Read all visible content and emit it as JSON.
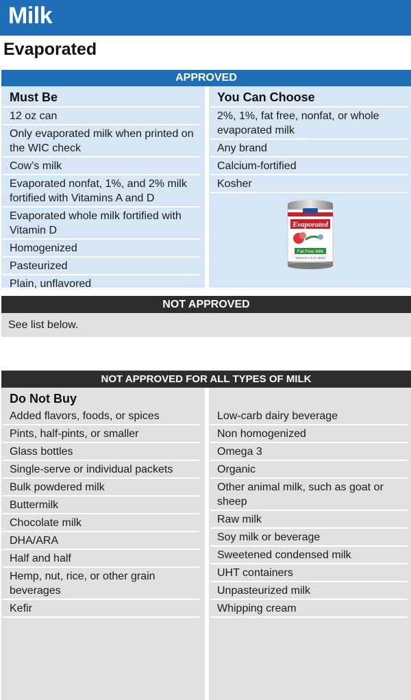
{
  "page": {
    "title": "Milk",
    "subtitle": "Evaporated"
  },
  "approved": {
    "header": "APPROVED",
    "must_be": {
      "heading": "Must Be",
      "items": [
        "12 oz can",
        "Only evaporated milk when printed on the WIC check",
        "Cow’s milk",
        "Evaporated nonfat, 1%, and 2% milk fortified with Vitamins A and D",
        "Evaporated whole milk fortified with Vitamin D",
        "Homogenized",
        "Pasteurized",
        "Plain, unflavored"
      ]
    },
    "you_can_choose": {
      "heading": "You Can Choose",
      "items": [
        "2%, 1%, fat free, nonfat, or whole evaporated milk",
        "Any brand",
        "Calcium-fortified",
        "Kosher"
      ]
    },
    "can_image": {
      "brand": "Evaporated",
      "label": "Fat Free Milk",
      "note": "Vitamins A & D Added"
    }
  },
  "not_approved": {
    "header": "NOT APPROVED",
    "text": "See list below."
  },
  "not_approved_all": {
    "header": "NOT APPROVED FOR ALL TYPES OF MILK",
    "heading": "Do Not Buy",
    "left_items": [
      "Added flavors, foods, or spices",
      "Pints, half-pints, or smaller",
      "Glass bottles",
      "Single-serve or individual packets",
      "Bulk powdered milk",
      "Buttermilk",
      "Chocolate milk",
      "DHA/ARA",
      "Half and half",
      "Hemp, nut, rice, or other grain beverages",
      "Kefir"
    ],
    "right_items": [
      "Low-carb dairy beverage",
      "Non homogenized",
      "Omega 3",
      "Organic",
      "Other animal milk, such as goat or sheep",
      "Raw milk",
      "Soy milk or beverage",
      "Sweetened condensed milk",
      "UHT containers",
      "Unpasteurized milk",
      "Whipping cream"
    ]
  },
  "colors": {
    "brand_blue": "#1f6fb8",
    "dark_header": "#2e2e2e",
    "approved_bg": "#d6e6f4",
    "not_approved_bg": "#e0e0e0"
  }
}
